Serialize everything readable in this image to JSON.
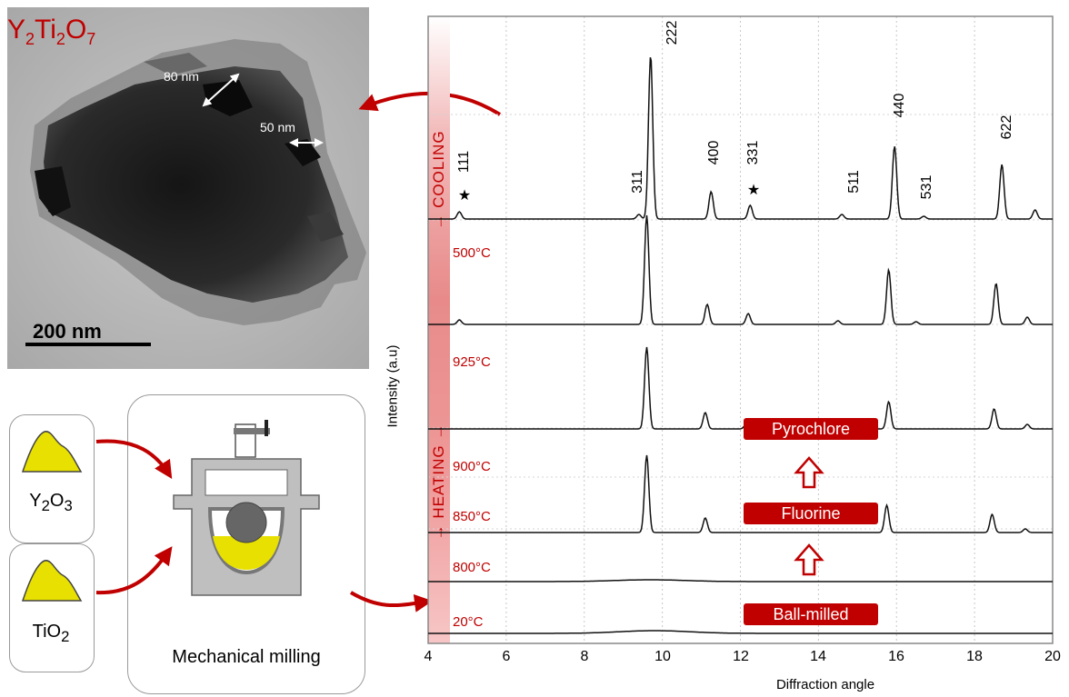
{
  "tem": {
    "title_base1": "Y",
    "title_sub1": "2",
    "title_base2": "Ti",
    "title_sub2": "2",
    "title_base3": "O",
    "title_sub3": "7",
    "annot_80": "80 nm",
    "annot_50": "50 nm",
    "scale_label": "200 nm"
  },
  "precursors": {
    "y2o3": {
      "base1": "Y",
      "sub1": "2",
      "base2": "O",
      "sub2": "3"
    },
    "tio2": {
      "base1": "TiO",
      "sub1": "2"
    },
    "plus": "+"
  },
  "mill": {
    "label": "Mechanical milling"
  },
  "chart": {
    "ylabel": "Intensity (a.u)",
    "xlabel": "Diffraction angle",
    "xticks": [
      "4",
      "6",
      "8",
      "10",
      "12",
      "14",
      "16",
      "18",
      "20"
    ],
    "strip_cooling": "→ COOLING",
    "strip_heating": "→ HEATING →",
    "temps": [
      "500°C",
      "925°C",
      "900°C",
      "850°C",
      "800°C",
      "20°C"
    ],
    "peaks": [
      "111",
      "311",
      "222",
      "400",
      "331",
      "511",
      "440",
      "531",
      "622"
    ],
    "star": "★",
    "phases": [
      "Pyrochlore",
      "Fluorine",
      "Ball-milled"
    ]
  },
  "chart_data": {
    "type": "line",
    "xlabel": "Diffraction angle",
    "ylabel": "Intensity (a.u)",
    "xlim": [
      4,
      20
    ],
    "xticks": [
      4,
      6,
      8,
      10,
      12,
      14,
      16,
      18,
      20
    ],
    "grid": true,
    "series": [
      {
        "name": "500°C",
        "peaks": [
          [
            4.8,
            0.08
          ],
          [
            9.4,
            0.05
          ],
          [
            9.7,
            1.8
          ],
          [
            11.25,
            0.3
          ],
          [
            12.25,
            0.15
          ],
          [
            14.6,
            0.05
          ],
          [
            15.95,
            0.8
          ],
          [
            16.7,
            0.03
          ],
          [
            18.7,
            0.6
          ],
          [
            19.55,
            0.1
          ]
        ]
      },
      {
        "name": "925°C",
        "peaks": [
          [
            4.8,
            0.05
          ],
          [
            9.6,
            1.2
          ],
          [
            11.15,
            0.22
          ],
          [
            12.2,
            0.12
          ],
          [
            14.5,
            0.04
          ],
          [
            15.8,
            0.6
          ],
          [
            16.5,
            0.03
          ],
          [
            18.55,
            0.45
          ],
          [
            19.35,
            0.08
          ]
        ]
      },
      {
        "name": "900°C",
        "peaks": [
          [
            9.6,
            0.9
          ],
          [
            11.1,
            0.18
          ],
          [
            12.15,
            0.05
          ],
          [
            15.8,
            0.3
          ],
          [
            18.5,
            0.22
          ],
          [
            19.35,
            0.05
          ]
        ]
      },
      {
        "name": "850°C",
        "peaks": [
          [
            9.6,
            0.85
          ],
          [
            11.1,
            0.16
          ],
          [
            15.75,
            0.3
          ],
          [
            18.45,
            0.2
          ],
          [
            19.3,
            0.04
          ]
        ]
      },
      {
        "name": "800°C",
        "peaks": [
          [
            9.7,
            0.02
          ]
        ]
      },
      {
        "name": "20°C",
        "peaks": [
          [
            9.8,
            0.03
          ]
        ]
      }
    ],
    "annotations": [
      "111",
      "311",
      "222",
      "400",
      "331",
      "511",
      "440",
      "531",
      "622",
      "Pyrochlore",
      "Fluorine",
      "Ball-milled"
    ]
  },
  "colors": {
    "accent": "#c00000",
    "powder": "#e8e000",
    "frame": "#9a9a9a"
  }
}
